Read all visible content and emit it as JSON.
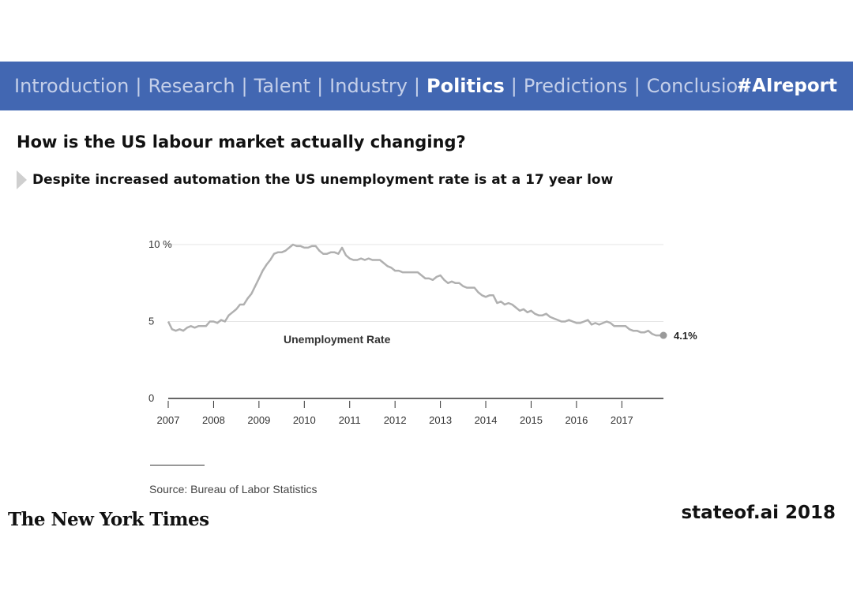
{
  "nav": {
    "items": [
      {
        "label": "Introduction",
        "active": false
      },
      {
        "label": "Research",
        "active": false
      },
      {
        "label": "Talent",
        "active": false
      },
      {
        "label": "Industry",
        "active": false
      },
      {
        "label": "Politics",
        "active": true
      },
      {
        "label": "Predictions",
        "active": false
      },
      {
        "label": "Conclusion",
        "active": false
      }
    ],
    "separator": "|",
    "hashtag": "#AIreport"
  },
  "title": "How is the US labour market actually changing?",
  "subtitle": "Despite increased automation the US unemployment rate is at a 17 year low",
  "source": "Source: Bureau of Labor Statistics",
  "logo_text": "The New York Times",
  "footer_right": "stateof.ai 2018",
  "colors": {
    "nav_bg": "#4267b2",
    "nav_active": "#ffffff",
    "nav_inactive": "#c4cfe9",
    "line": "#b0b0b0",
    "marker": "#9a9a9a"
  },
  "chart_data": {
    "type": "line",
    "title": "",
    "series": [
      {
        "name": "Unemployment Rate",
        "x": [
          2007.0,
          2007.083,
          2007.167,
          2007.25,
          2007.333,
          2007.417,
          2007.5,
          2007.583,
          2007.667,
          2007.75,
          2007.833,
          2007.917,
          2008.0,
          2008.083,
          2008.167,
          2008.25,
          2008.333,
          2008.417,
          2008.5,
          2008.583,
          2008.667,
          2008.75,
          2008.833,
          2008.917,
          2009.0,
          2009.083,
          2009.167,
          2009.25,
          2009.333,
          2009.417,
          2009.5,
          2009.583,
          2009.667,
          2009.75,
          2009.833,
          2009.917,
          2010.0,
          2010.083,
          2010.167,
          2010.25,
          2010.333,
          2010.417,
          2010.5,
          2010.583,
          2010.667,
          2010.75,
          2010.833,
          2010.917,
          2011.0,
          2011.083,
          2011.167,
          2011.25,
          2011.333,
          2011.417,
          2011.5,
          2011.583,
          2011.667,
          2011.75,
          2011.833,
          2011.917,
          2012.0,
          2012.083,
          2012.167,
          2012.25,
          2012.333,
          2012.417,
          2012.5,
          2012.583,
          2012.667,
          2012.75,
          2012.833,
          2012.917,
          2013.0,
          2013.083,
          2013.167,
          2013.25,
          2013.333,
          2013.417,
          2013.5,
          2013.583,
          2013.667,
          2013.75,
          2013.833,
          2013.917,
          2014.0,
          2014.083,
          2014.167,
          2014.25,
          2014.333,
          2014.417,
          2014.5,
          2014.583,
          2014.667,
          2014.75,
          2014.833,
          2014.917,
          2015.0,
          2015.083,
          2015.167,
          2015.25,
          2015.333,
          2015.417,
          2015.5,
          2015.583,
          2015.667,
          2015.75,
          2015.833,
          2015.917,
          2016.0,
          2016.083,
          2016.167,
          2016.25,
          2016.333,
          2016.417,
          2016.5,
          2016.583,
          2016.667,
          2016.75,
          2016.833,
          2016.917,
          2017.0,
          2017.083,
          2017.167,
          2017.25,
          2017.333,
          2017.417,
          2017.5,
          2017.583,
          2017.667,
          2017.75,
          2017.833,
          2017.917
        ],
        "y": [
          5.0,
          4.5,
          4.4,
          4.5,
          4.4,
          4.6,
          4.7,
          4.6,
          4.7,
          4.7,
          4.7,
          5.0,
          5.0,
          4.9,
          5.1,
          5.0,
          5.4,
          5.6,
          5.8,
          6.1,
          6.1,
          6.5,
          6.8,
          7.3,
          7.8,
          8.3,
          8.7,
          9.0,
          9.4,
          9.5,
          9.5,
          9.6,
          9.8,
          10.0,
          9.9,
          9.9,
          9.8,
          9.8,
          9.9,
          9.9,
          9.6,
          9.4,
          9.4,
          9.5,
          9.5,
          9.4,
          9.8,
          9.3,
          9.1,
          9.0,
          9.0,
          9.1,
          9.0,
          9.1,
          9.0,
          9.0,
          9.0,
          8.8,
          8.6,
          8.5,
          8.3,
          8.3,
          8.2,
          8.2,
          8.2,
          8.2,
          8.2,
          8.0,
          7.8,
          7.8,
          7.7,
          7.9,
          8.0,
          7.7,
          7.5,
          7.6,
          7.5,
          7.5,
          7.3,
          7.2,
          7.2,
          7.2,
          6.9,
          6.7,
          6.6,
          6.7,
          6.7,
          6.2,
          6.3,
          6.1,
          6.2,
          6.1,
          5.9,
          5.7,
          5.8,
          5.6,
          5.7,
          5.5,
          5.4,
          5.4,
          5.5,
          5.3,
          5.2,
          5.1,
          5.0,
          5.0,
          5.1,
          5.0,
          4.9,
          4.9,
          5.0,
          5.1,
          4.8,
          4.9,
          4.8,
          4.9,
          5.0,
          4.9,
          4.7,
          4.7,
          4.7,
          4.7,
          4.5,
          4.4,
          4.4,
          4.3,
          4.3,
          4.4,
          4.2,
          4.1,
          4.1,
          4.1
        ]
      }
    ],
    "x_ticks": [
      2007,
      2008,
      2009,
      2010,
      2011,
      2012,
      2013,
      2014,
      2015,
      2016,
      2017
    ],
    "xlim": [
      2007,
      2017.917
    ],
    "y_ticks": [
      {
        "value": 0,
        "label": "0"
      },
      {
        "value": 5,
        "label": "5"
      },
      {
        "value": 10,
        "label": "10 %"
      }
    ],
    "ylim": [
      0,
      10
    ],
    "series_label": "Unemployment Rate",
    "end_label": "4.1%",
    "xlabel": "",
    "ylabel": "",
    "grid": true
  }
}
